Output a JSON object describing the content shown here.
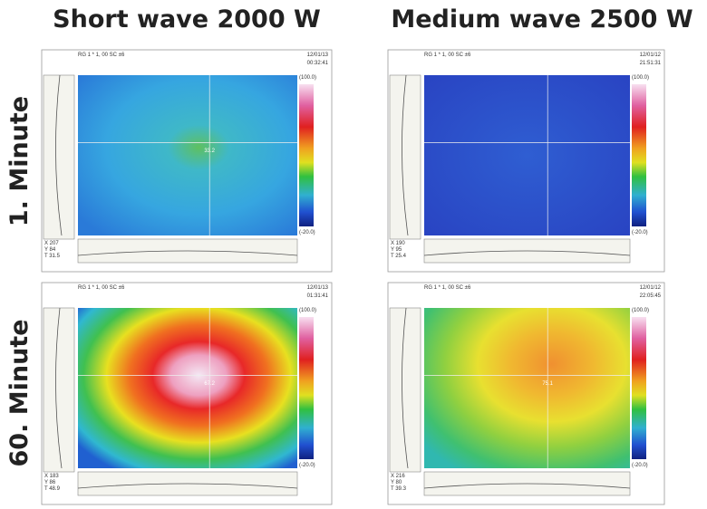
{
  "columns": [
    "Short wave 2000 W",
    "Medium wave 2500 W"
  ],
  "rows": [
    "1. Minute",
    "60. Minute"
  ],
  "panels": [
    {
      "header": "RG 1 * 1, 00 SC ±6",
      "date": "12/01/13",
      "time": "00:32:41",
      "scale_max": "(100.0)",
      "scale_min": "(-20.0)",
      "cursor": [
        "X 207",
        "Y 84",
        "T 31.5"
      ],
      "center": "33.2"
    },
    {
      "header": "RG 1 * 1, 00 SC ±6",
      "date": "12/01/12",
      "time": "21:51:31",
      "scale_max": "(100.0)",
      "scale_min": "(-20.0)",
      "cursor": [
        "X 190",
        "Y 95",
        "T 25.4"
      ]
    },
    {
      "header": "RG 1 * 1, 00 SC ±6",
      "date": "12/01/13",
      "time": "01:31:41",
      "scale_max": "(100.0)",
      "scale_min": "(-20.0)",
      "cursor": [
        "X 183",
        "Y 86",
        "T 48.9"
      ],
      "center": "67.2"
    },
    {
      "header": "RG 1 * 1, 00 SC ±6",
      "date": "12/01/12",
      "time": "22:05:45",
      "scale_max": "(100.0)",
      "scale_min": "(-20.0)",
      "cursor": [
        "X 216",
        "Y 80",
        "T 39.3"
      ],
      "center": "75.1"
    }
  ]
}
